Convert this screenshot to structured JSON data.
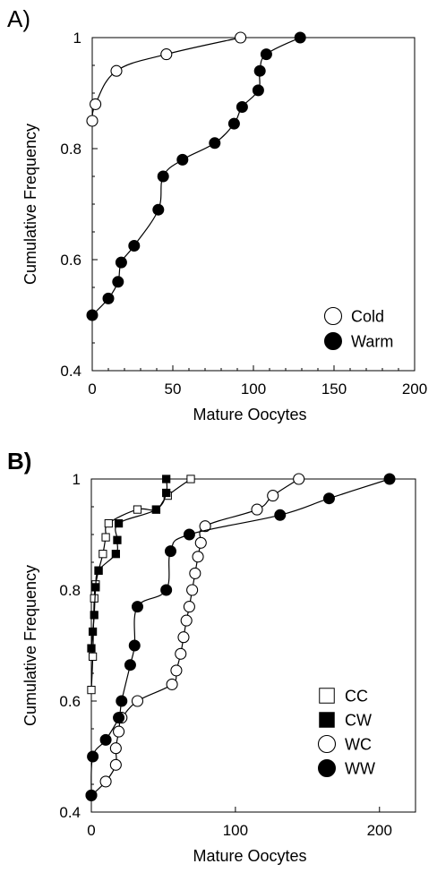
{
  "panels": [
    {
      "label": "A)",
      "label_bold": false,
      "chart_data": {
        "type": "line",
        "xlabel": "Mature Oocytes",
        "ylabel": "Cumulative Frequency",
        "xlim": [
          0,
          200
        ],
        "ylim": [
          0.4,
          1.0
        ],
        "x_ticks": [
          "0",
          "50",
          "100",
          "150",
          "200"
        ],
        "y_ticks": [
          "0.4",
          "0.6",
          "0.8",
          "1"
        ],
        "grid": false,
        "legend_position": "bottom-right",
        "series": [
          {
            "name": "Cold",
            "marker": "open-circle",
            "x": [
              0,
              2,
              15,
              46,
              92
            ],
            "y": [
              0.85,
              0.88,
              0.94,
              0.97,
              1.0
            ]
          },
          {
            "name": "Warm",
            "marker": "filled-circle",
            "x": [
              0,
              10,
              16,
              18,
              26,
              41,
              44,
              56,
              76,
              88,
              93,
              103,
              104,
              108,
              129
            ],
            "y": [
              0.5,
              0.53,
              0.56,
              0.595,
              0.625,
              0.69,
              0.75,
              0.78,
              0.81,
              0.845,
              0.875,
              0.905,
              0.94,
              0.97,
              1.0
            ]
          }
        ]
      }
    },
    {
      "label": "B)",
      "label_bold": true,
      "chart_data": {
        "type": "line",
        "xlabel": "Mature Oocytes",
        "ylabel": "Cumulative Frequency",
        "xlim": [
          0,
          225
        ],
        "ylim": [
          0.4,
          1.0
        ],
        "x_ticks": [
          "0",
          "100",
          "200"
        ],
        "y_ticks": [
          "0.4",
          "0.6",
          "0.8",
          "1"
        ],
        "grid": false,
        "legend_position": "bottom-right",
        "series": [
          {
            "name": "CC",
            "marker": "open-square",
            "x": [
              0,
              1,
              2,
              3,
              5,
              8,
              10,
              12,
              32,
              45,
              53,
              69
            ],
            "y": [
              0.62,
              0.68,
              0.785,
              0.81,
              0.835,
              0.865,
              0.895,
              0.92,
              0.945,
              0.945,
              0.97,
              1.0
            ]
          },
          {
            "name": "CW",
            "marker": "filled-square",
            "x": [
              0,
              1,
              2,
              3,
              5,
              17,
              18,
              19,
              45,
              52,
              52
            ],
            "y": [
              0.695,
              0.725,
              0.755,
              0.805,
              0.835,
              0.865,
              0.89,
              0.92,
              0.945,
              0.975,
              1.0
            ]
          },
          {
            "name": "WC",
            "marker": "open-circle",
            "x": [
              0,
              10,
              17,
              17,
              19,
              20,
              21,
              32,
              56,
              59,
              62,
              64,
              66,
              68,
              70,
              72,
              74,
              76,
              79,
              115,
              126,
              144
            ],
            "y": [
              0.43,
              0.455,
              0.485,
              0.515,
              0.545,
              0.57,
              0.57,
              0.6,
              0.63,
              0.655,
              0.685,
              0.715,
              0.745,
              0.77,
              0.8,
              0.83,
              0.86,
              0.885,
              0.915,
              0.945,
              0.97,
              1.0
            ]
          },
          {
            "name": "WW",
            "marker": "filled-circle",
            "x": [
              0,
              1,
              10,
              19,
              21,
              27,
              30,
              32,
              52,
              55,
              68,
              131,
              165,
              207
            ],
            "y": [
              0.43,
              0.5,
              0.53,
              0.57,
              0.6,
              0.665,
              0.7,
              0.77,
              0.8,
              0.87,
              0.9,
              0.935,
              0.965,
              1.0
            ]
          }
        ]
      }
    }
  ]
}
